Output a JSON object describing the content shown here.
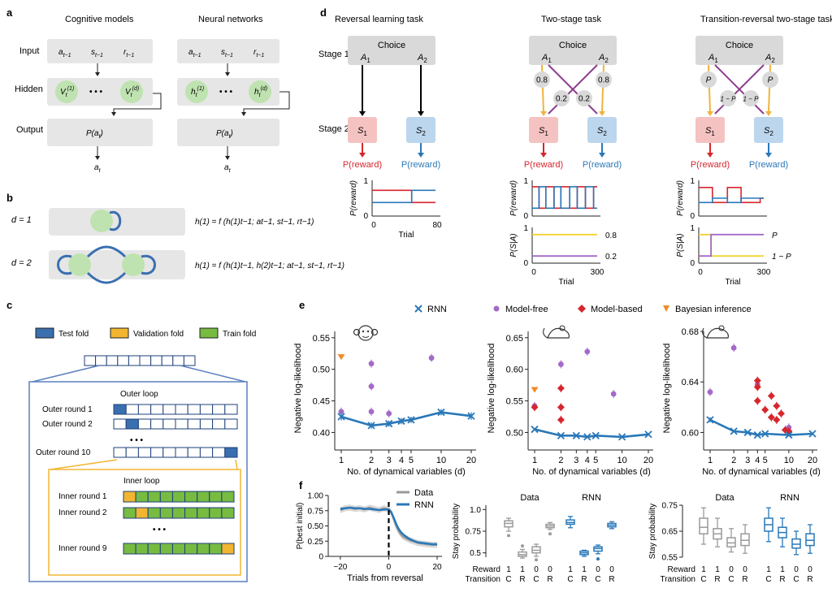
{
  "panel_labels": {
    "a": "a",
    "b": "b",
    "c": "c",
    "d": "d",
    "e": "e",
    "f": "f"
  },
  "panel_a": {
    "col1_title": "Cognitive models",
    "col2_title": "Neural networks",
    "row_input": "Input",
    "row_hidden": "Hidden",
    "row_output": "Output",
    "in_a": "a",
    "in_s": "s",
    "in_r": "r",
    "sub_tm1": "t−1",
    "V": "V",
    "h": "h",
    "sub_t": "t",
    "sup_1": "(1)",
    "sup_d": "(d)",
    "dots": "• • •",
    "P_open": "P(a",
    "P_close": ")",
    "a": "a"
  },
  "panel_b": {
    "row1_label": "d = 1",
    "row2_label": "d = 2",
    "eq1": "h(1) = f (h(1)t−1; at−1, st−1, rt−1)",
    "eq2": "h(1) = f (h(1)t−1, h(2)t−1; at−1, st−1, rt−1)"
  },
  "panel_c": {
    "legend": [
      "Test fold",
      "Validation fold",
      "Train fold"
    ],
    "outer_title": "Outer loop",
    "outer_rounds": [
      "Outer round 1",
      "Outer round 2",
      "Outer round 10"
    ],
    "inner_title": "Inner loop",
    "inner_rounds": [
      "Inner round 1",
      "Inner round 2",
      "Inner round 9"
    ],
    "dots": "• • •",
    "colors": {
      "test": "#3a6fb0",
      "validation": "#f2b531",
      "train": "#77bb41"
    }
  },
  "panel_d": {
    "titles": [
      "Reversal learning task",
      "Two-stage task",
      "Transition-reversal two-stage task"
    ],
    "stage1": "Stage 1",
    "stage2": "Stage 2",
    "choice": "Choice",
    "A1": "A1",
    "A2": "A2",
    "S1": "S1",
    "S2": "S2",
    "p_reward": "P(reward)",
    "two_stage_probs": [
      "0.8",
      "0.2",
      "0.2",
      "0.8"
    ],
    "tr_probs": [
      "P",
      "1 − P",
      "1 − P",
      "P"
    ],
    "axis_preward": "P(reward)",
    "axis_psa": "P(S|A)",
    "xlabel": "Trial",
    "rev_xticks": [
      "0",
      "80"
    ],
    "ts_xticks": [
      "0",
      "300"
    ],
    "yticks": [
      "0",
      "1"
    ],
    "trans_labels_ts": [
      "0.8",
      "0.2"
    ],
    "trans_labels_tr": [
      "P",
      "1 − P"
    ],
    "colors": {
      "red": "#d7262d",
      "blue": "#2a78b8",
      "yellow": "#f2d431",
      "purple": "#a36ac9",
      "arrow_orange": "#f0b43c",
      "arrow_purple": "#8e3d8f"
    }
  },
  "legend_e": [
    {
      "label": "RNN",
      "marker": "×",
      "color": "#2a78b8"
    },
    {
      "label": "Model-free",
      "marker": "●",
      "color": "#a36ac9"
    },
    {
      "label": "Model-based",
      "marker": "◆",
      "color": "#d7262d"
    },
    {
      "label": "Bayesian inference",
      "marker": "▼",
      "color": "#f08a24"
    }
  ],
  "chart_data": [
    {
      "id": "e-monkey",
      "type": "scatter",
      "ylabel": "Negative log-likelihood",
      "xlabel": "No. of dynamical variables (d)",
      "xscale": "log",
      "xlim": [
        1,
        20
      ],
      "ylim": [
        0.38,
        0.56
      ],
      "xticks": [
        "1",
        "2",
        "3",
        "4",
        "5",
        "10",
        "20"
      ],
      "yticks": [
        "0.40",
        "0.45",
        "0.50",
        "0.55"
      ],
      "rnn": {
        "x": [
          1,
          2,
          3,
          4,
          5,
          10,
          20
        ],
        "y": [
          0.425,
          0.411,
          0.414,
          0.418,
          0.42,
          0.432,
          0.426
        ],
        "err": [
          0.006,
          0.005,
          0.005,
          0.005,
          0.005,
          0.005,
          0.006
        ]
      },
      "model_free": [
        {
          "x": 1,
          "y": 0.433
        },
        {
          "x": 2,
          "y": 0.509
        },
        {
          "x": 2,
          "y": 0.473
        },
        {
          "x": 2,
          "y": 0.433
        },
        {
          "x": 3,
          "y": 0.43
        },
        {
          "x": 8,
          "y": 0.518
        }
      ],
      "model_based": [],
      "bayesian": [
        {
          "x": 1,
          "y": 0.52
        }
      ]
    },
    {
      "id": "e-rat",
      "type": "scatter",
      "ylabel": "Negative log-likelihood",
      "xlabel": "No. of dynamical variables (d)",
      "xscale": "log",
      "xlim": [
        1,
        20
      ],
      "ylim": [
        0.48,
        0.66
      ],
      "xticks": [
        "1",
        "2",
        "3",
        "4",
        "5",
        "10",
        "20"
      ],
      "yticks": [
        "0.50",
        "0.55",
        "0.60",
        "0.65"
      ],
      "rnn": {
        "x": [
          1,
          2,
          3,
          4,
          5,
          10,
          20
        ],
        "y": [
          0.505,
          0.495,
          0.495,
          0.493,
          0.495,
          0.493,
          0.497
        ],
        "err": [
          0.002,
          0.002,
          0.002,
          0.002,
          0.002,
          0.002,
          0.002
        ]
      },
      "model_free": [
        {
          "x": 1,
          "y": 0.542
        },
        {
          "x": 2,
          "y": 0.608
        },
        {
          "x": 4,
          "y": 0.628
        },
        {
          "x": 8,
          "y": 0.561
        }
      ],
      "model_based": [
        {
          "x": 1,
          "y": 0.54
        },
        {
          "x": 2,
          "y": 0.57
        },
        {
          "x": 2,
          "y": 0.54
        },
        {
          "x": 2,
          "y": 0.52
        }
      ],
      "bayesian": [
        {
          "x": 1,
          "y": 0.568
        }
      ]
    },
    {
      "id": "e-mouse",
      "type": "scatter",
      "ylabel": "Negative log-likelihood",
      "xlabel": "No. of dynamical variables (d)",
      "xscale": "log",
      "xlim": [
        1,
        20
      ],
      "ylim": [
        0.59,
        0.68
      ],
      "xticks": [
        "1",
        "2",
        "3",
        "4",
        "5",
        "10",
        "20"
      ],
      "yticks": [
        "0.60",
        "0.64",
        "0.68"
      ],
      "rnn": {
        "x": [
          1,
          2,
          3,
          4,
          5,
          10,
          20
        ],
        "y": [
          0.61,
          0.601,
          0.6,
          0.598,
          0.599,
          0.598,
          0.599
        ],
        "err": [
          0.002,
          0.001,
          0.001,
          0.001,
          0.001,
          0.001,
          0.001
        ]
      },
      "model_free": [
        {
          "x": 1,
          "y": 0.632
        },
        {
          "x": 2,
          "y": 0.667
        },
        {
          "x": 4,
          "y": 0.638
        },
        {
          "x": 10,
          "y": 0.604
        }
      ],
      "model_based": [
        {
          "x": 4,
          "y": 0.641
        },
        {
          "x": 4,
          "y": 0.636
        },
        {
          "x": 4,
          "y": 0.625
        },
        {
          "x": 5,
          "y": 0.618
        },
        {
          "x": 6,
          "y": 0.629
        },
        {
          "x": 6,
          "y": 0.612
        },
        {
          "x": 7,
          "y": 0.621
        },
        {
          "x": 7,
          "y": 0.61
        },
        {
          "x": 8,
          "y": 0.615
        },
        {
          "x": 9,
          "y": 0.602
        },
        {
          "x": 10,
          "y": 0.601
        }
      ],
      "bayesian": []
    },
    {
      "id": "f-reversal",
      "type": "line",
      "ylabel": "P(best initial)",
      "xlabel": "Trials from reversal",
      "xlim": [
        -25,
        22
      ],
      "ylim": [
        0,
        1
      ],
      "xticks": [
        "−20",
        "0",
        "20"
      ],
      "yticks": [
        "0",
        "0.25",
        "0.50",
        "0.75",
        "1.00"
      ],
      "legend": [
        "Data",
        "RNN"
      ],
      "x": [
        -20,
        -18,
        -16,
        -14,
        -12,
        -10,
        -8,
        -6,
        -4,
        -2,
        0,
        1,
        2,
        3,
        4,
        5,
        6,
        7,
        8,
        9,
        10,
        12,
        14,
        16,
        18,
        20
      ],
      "series": [
        {
          "name": "Data",
          "color": "#9a9a9a",
          "values": [
            0.76,
            0.79,
            0.8,
            0.78,
            0.79,
            0.77,
            0.8,
            0.78,
            0.76,
            0.79,
            0.77,
            0.72,
            0.62,
            0.5,
            0.42,
            0.36,
            0.32,
            0.3,
            0.28,
            0.26,
            0.25,
            0.22,
            0.21,
            0.2,
            0.19,
            0.19
          ]
        },
        {
          "name": "RNN",
          "color": "#2a78b8",
          "values": [
            0.78,
            0.79,
            0.8,
            0.79,
            0.79,
            0.78,
            0.78,
            0.77,
            0.76,
            0.77,
            0.77,
            0.73,
            0.64,
            0.54,
            0.46,
            0.4,
            0.36,
            0.33,
            0.3,
            0.28,
            0.26,
            0.23,
            0.22,
            0.21,
            0.2,
            0.2
          ]
        }
      ]
    },
    {
      "id": "f-rat-stay",
      "type": "box",
      "ylabel": "Stay probability",
      "ylim": [
        0.45,
        1.05
      ],
      "yticks": [
        "0.5",
        "0.75",
        "1.0"
      ],
      "groups": [
        "Data",
        "RNN"
      ],
      "reward": [
        "1",
        "1",
        "0",
        "0"
      ],
      "transition": [
        "C",
        "R",
        "C",
        "R"
      ],
      "row_labels": [
        "Reward",
        "Transition"
      ],
      "boxes": [
        {
          "group": "Data",
          "q1": 0.8,
          "med": 0.84,
          "q3": 0.87,
          "lo": 0.75,
          "hi": 0.9,
          "out": [
            0.7
          ]
        },
        {
          "group": "Data",
          "q1": 0.46,
          "med": 0.48,
          "q3": 0.51,
          "lo": 0.44,
          "hi": 0.54,
          "out": [
            0.58
          ]
        },
        {
          "group": "Data",
          "q1": 0.5,
          "med": 0.53,
          "q3": 0.57,
          "lo": 0.46,
          "hi": 0.6,
          "out": [
            0.42
          ]
        },
        {
          "group": "Data",
          "q1": 0.79,
          "med": 0.81,
          "q3": 0.83,
          "lo": 0.77,
          "hi": 0.85,
          "out": [
            0.72
          ]
        },
        {
          "group": "RNN",
          "q1": 0.83,
          "med": 0.85,
          "q3": 0.88,
          "lo": 0.79,
          "hi": 0.92,
          "out": []
        },
        {
          "group": "RNN",
          "q1": 0.48,
          "med": 0.5,
          "q3": 0.52,
          "lo": 0.46,
          "hi": 0.53,
          "out": []
        },
        {
          "group": "RNN",
          "q1": 0.52,
          "med": 0.55,
          "q3": 0.57,
          "lo": 0.49,
          "hi": 0.59,
          "out": [
            0.43
          ]
        },
        {
          "group": "RNN",
          "q1": 0.8,
          "med": 0.82,
          "q3": 0.84,
          "lo": 0.78,
          "hi": 0.86,
          "out": []
        }
      ]
    },
    {
      "id": "f-mouse-stay",
      "type": "box",
      "ylabel": "Stay probability",
      "ylim": [
        0.55,
        0.75
      ],
      "yticks": [
        "0.55",
        "0.65",
        "0.75"
      ],
      "groups": [
        "Data",
        "RNN"
      ],
      "reward": [
        "1",
        "1",
        "0",
        "0"
      ],
      "transition": [
        "C",
        "R",
        "C",
        "R"
      ],
      "row_labels": [
        "Reward",
        "Transition"
      ],
      "boxes": [
        {
          "group": "Data",
          "q1": 0.64,
          "med": 0.665,
          "q3": 0.7,
          "lo": 0.6,
          "hi": 0.74,
          "out": []
        },
        {
          "group": "Data",
          "q1": 0.62,
          "med": 0.64,
          "q3": 0.66,
          "lo": 0.59,
          "hi": 0.7,
          "out": []
        },
        {
          "group": "Data",
          "q1": 0.59,
          "med": 0.605,
          "q3": 0.625,
          "lo": 0.57,
          "hi": 0.66,
          "out": []
        },
        {
          "group": "Data",
          "q1": 0.595,
          "med": 0.615,
          "q3": 0.64,
          "lo": 0.565,
          "hi": 0.675,
          "out": []
        },
        {
          "group": "RNN",
          "q1": 0.65,
          "med": 0.675,
          "q3": 0.7,
          "lo": 0.61,
          "hi": 0.74,
          "out": []
        },
        {
          "group": "RNN",
          "q1": 0.625,
          "med": 0.645,
          "q3": 0.665,
          "lo": 0.59,
          "hi": 0.7,
          "out": []
        },
        {
          "group": "RNN",
          "q1": 0.585,
          "med": 0.6,
          "q3": 0.62,
          "lo": 0.56,
          "hi": 0.65,
          "out": []
        },
        {
          "group": "RNN",
          "q1": 0.595,
          "med": 0.615,
          "q3": 0.64,
          "lo": 0.565,
          "hi": 0.675,
          "out": []
        }
      ]
    }
  ]
}
